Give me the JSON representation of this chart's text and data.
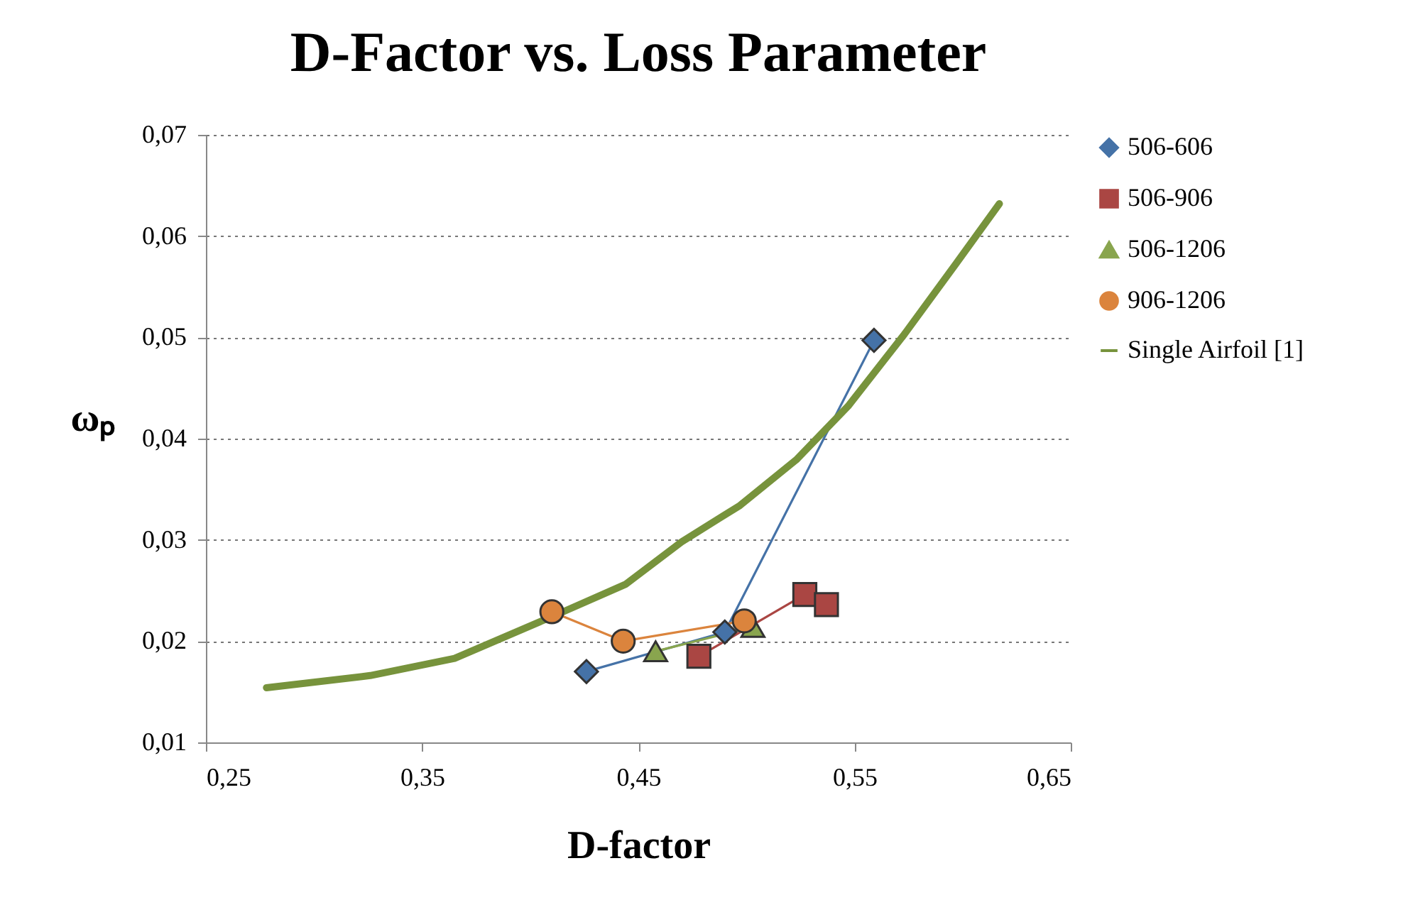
{
  "chart_data": {
    "type": "line",
    "title": "D-Factor vs. Loss Parameter",
    "xlabel": "D-factor",
    "ylabel": "ωₚ",
    "xlim": [
      0.25,
      0.65
    ],
    "xticks": [
      {
        "value": 0.25,
        "label": "0,25"
      },
      {
        "value": 0.35,
        "label": "0,35"
      },
      {
        "value": 0.45,
        "label": "0,45"
      },
      {
        "value": 0.55,
        "label": "0,55"
      },
      {
        "value": 0.65,
        "label": "0,65"
      }
    ],
    "ylim": [
      0.01,
      0.07
    ],
    "yticks": [
      {
        "value": 0.01,
        "label": "0,01"
      },
      {
        "value": 0.02,
        "label": "0,02"
      },
      {
        "value": 0.03,
        "label": "0,03"
      },
      {
        "value": 0.04,
        "label": "0,04"
      },
      {
        "value": 0.05,
        "label": "0,05"
      },
      {
        "value": 0.06,
        "label": "0,06"
      },
      {
        "value": 0.07,
        "label": "0,07"
      }
    ],
    "grid": "y",
    "legend": "right",
    "line_style": "solid",
    "series": [
      {
        "name": "506-606",
        "color": "#4572a7",
        "marker": "diamond",
        "x": [
          0.426,
          0.49,
          0.559
        ],
        "values": [
          0.017,
          0.0209,
          0.0497
        ]
      },
      {
        "name": "506-906",
        "color": "#aa4643",
        "marker": "square",
        "x": [
          0.478,
          0.527,
          0.537
        ],
        "values": [
          0.0185,
          0.0246,
          0.0236
        ]
      },
      {
        "name": "506-1206",
        "color": "#89a54e",
        "marker": "triangle",
        "x": [
          0.458,
          0.503
        ],
        "values": [
          0.019,
          0.0214
        ]
      },
      {
        "name": "906-1206",
        "color": "#db843d",
        "marker": "circle",
        "x": [
          0.41,
          0.443,
          0.499
        ],
        "values": [
          0.0229,
          0.02,
          0.022
        ]
      },
      {
        "name": "Single Airfoil [1]",
        "color": "#77933c",
        "marker": "none",
        "x": [
          0.278,
          0.326,
          0.365,
          0.412,
          0.444,
          0.47,
          0.497,
          0.523,
          0.547,
          0.573,
          0.597,
          0.617
        ],
        "values": [
          0.0154,
          0.0166,
          0.0183,
          0.0226,
          0.0256,
          0.0298,
          0.0334,
          0.0379,
          0.0432,
          0.0503,
          0.0573,
          0.0632
        ]
      }
    ]
  }
}
